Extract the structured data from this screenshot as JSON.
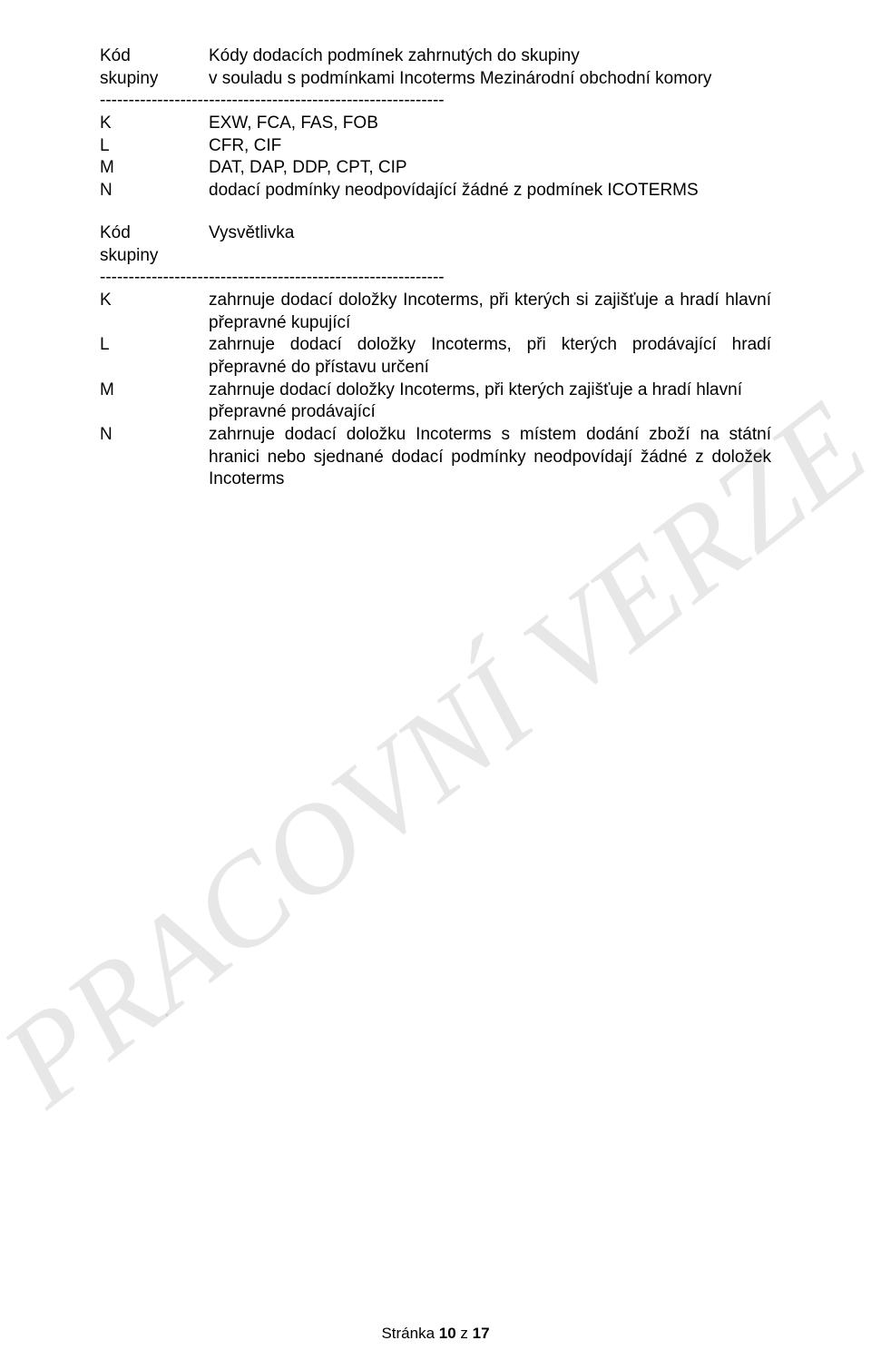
{
  "watermark": "PRACOVNÍ VERZE",
  "colors": {
    "text": "#000000",
    "background": "#ffffff",
    "watermark": "rgba(120,120,120,0.18)"
  },
  "fonts": {
    "body_family": "Arial",
    "body_size_pt": 14,
    "watermark_family": "Times New Roman Italic",
    "watermark_size_pt": 105
  },
  "block1": {
    "header_left_line1": "Kód",
    "header_left_line2": "skupiny",
    "header_right_line1": "Kódy dodacích podmínek zahrnutých do skupiny",
    "header_right_line2": "v souladu s podmínkami Incoterms Mezinárodní obchodní komory",
    "rows": [
      {
        "code": "K",
        "text": "EXW, FCA, FAS, FOB"
      },
      {
        "code": "L",
        "text": "CFR, CIF"
      },
      {
        "code": "M",
        "text": "DAT, DAP, DDP, CPT, CIP"
      },
      {
        "code": "N",
        "text": "dodací podmínky neodpovídající žádné z podmínek ICOTERMS"
      }
    ]
  },
  "block2": {
    "header_left_line1": "Kód",
    "header_left_line2": "skupiny",
    "header_right": "Vysvětlivka",
    "rows": [
      {
        "code": "K",
        "text": "zahrnuje dodací doložky Incoterms, při kterých si zajišťuje a hradí hlavní přepravné kupující",
        "justify": true
      },
      {
        "code": "L",
        "text": "zahrnuje dodací doložky Incoterms, při kterých prodávající hradí přepravné do přístavu určení",
        "justify": true
      },
      {
        "code": "M",
        "text": "zahrnuje dodací doložky Incoterms, při kterých zajišťuje a hradí hlavní přepravné prodávající",
        "justify": false
      },
      {
        "code": "N",
        "text": "zahrnuje dodací doložku Incoterms s místem dodání zboží na státní hranici nebo sjednané dodací podmínky neodpovídají žádné z doložek Incoterms",
        "justify": true
      }
    ]
  },
  "separator": "------------------------------------------------------------",
  "footer": {
    "prefix": "Stránka ",
    "page": "10",
    "middle": " z ",
    "total": "17"
  }
}
